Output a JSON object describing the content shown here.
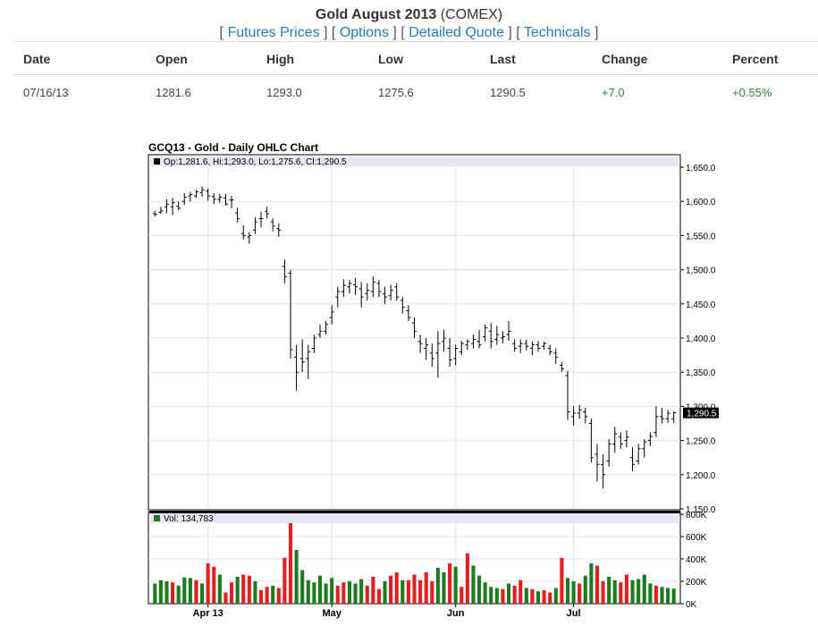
{
  "header": {
    "title_bold": "Gold August 2013",
    "title_suffix": " (COMEX)",
    "links": [
      "Futures Prices",
      "Options",
      "Detailed Quote",
      "Technicals"
    ]
  },
  "quote_table": {
    "columns": [
      "Date",
      "Open",
      "High",
      "Low",
      "Last",
      "Change",
      "Percent"
    ],
    "row": [
      "07/16/13",
      "1281.6",
      "1293.0",
      "1275.6",
      "1290.5",
      "+7.0",
      "+0.55%"
    ]
  },
  "colors": {
    "link": "#2a7ab8",
    "positive": "#2b8a2b",
    "up_volume": "#1e7a1e",
    "down_volume": "#e02020",
    "label_bg": "#e6e6f5"
  },
  "chart_data": {
    "type": "ohlc",
    "title": "GCQ13 - Gold - Daily OHLC Chart",
    "ohlc_label": "Op:1,281.6, Hi:1,293.0, Lo:1,275.6, Cl:1,290.5",
    "volume_label": "Vol: 134,783",
    "last_value_label": "1,290.5",
    "last_value": 1290.5,
    "price_ticks": [
      "1,650.0",
      "1,600.0",
      "1,550.0",
      "1,500.0",
      "1,450.0",
      "1,400.0",
      "1,350.0",
      "1,300.0",
      "1,250.0",
      "1,200.0",
      "1,150.0"
    ],
    "price_tick_values": [
      1650,
      1600,
      1550,
      1500,
      1450,
      1400,
      1350,
      1300,
      1250,
      1200,
      1150
    ],
    "price_range": [
      1150,
      1650
    ],
    "volume_ticks": [
      "800K",
      "600K",
      "400K",
      "200K",
      "0K"
    ],
    "volume_tick_values": [
      800000,
      600000,
      400000,
      200000,
      0
    ],
    "volume_range": [
      0,
      800000
    ],
    "x_labels": [
      {
        "label": "Apr 13",
        "index": 9
      },
      {
        "label": "May",
        "index": 30
      },
      {
        "label": "Jun",
        "index": 51
      },
      {
        "label": "Jul",
        "index": 71
      }
    ],
    "bars": [
      {
        "o": 1582,
        "h": 1586,
        "l": 1578,
        "c": 1581
      },
      {
        "o": 1584,
        "h": 1592,
        "l": 1582,
        "c": 1586
      },
      {
        "o": 1592,
        "h": 1603,
        "l": 1583,
        "c": 1596
      },
      {
        "o": 1592,
        "h": 1605,
        "l": 1580,
        "c": 1598
      },
      {
        "o": 1593,
        "h": 1600,
        "l": 1587,
        "c": 1590
      },
      {
        "o": 1600,
        "h": 1612,
        "l": 1595,
        "c": 1606
      },
      {
        "o": 1608,
        "h": 1614,
        "l": 1600,
        "c": 1610
      },
      {
        "o": 1608,
        "h": 1617,
        "l": 1605,
        "c": 1614
      },
      {
        "o": 1613,
        "h": 1622,
        "l": 1607,
        "c": 1617
      },
      {
        "o": 1615,
        "h": 1619,
        "l": 1601,
        "c": 1608
      },
      {
        "o": 1607,
        "h": 1612,
        "l": 1596,
        "c": 1603
      },
      {
        "o": 1603,
        "h": 1611,
        "l": 1598,
        "c": 1606
      },
      {
        "o": 1605,
        "h": 1611,
        "l": 1594,
        "c": 1596
      },
      {
        "o": 1602,
        "h": 1608,
        "l": 1590,
        "c": 1602
      },
      {
        "o": 1583,
        "h": 1591,
        "l": 1569,
        "c": 1575
      },
      {
        "o": 1553,
        "h": 1565,
        "l": 1544,
        "c": 1550
      },
      {
        "o": 1548,
        "h": 1555,
        "l": 1538,
        "c": 1550
      },
      {
        "o": 1558,
        "h": 1577,
        "l": 1552,
        "c": 1570
      },
      {
        "o": 1575,
        "h": 1585,
        "l": 1562,
        "c": 1575
      },
      {
        "o": 1585,
        "h": 1592,
        "l": 1575,
        "c": 1582
      },
      {
        "o": 1570,
        "h": 1575,
        "l": 1556,
        "c": 1564
      },
      {
        "o": 1560,
        "h": 1568,
        "l": 1548,
        "c": 1558
      },
      {
        "o": 1505,
        "h": 1515,
        "l": 1480,
        "c": 1490
      },
      {
        "o": 1495,
        "h": 1500,
        "l": 1370,
        "c": 1383
      },
      {
        "o": 1372,
        "h": 1390,
        "l": 1323,
        "c": 1350
      },
      {
        "o": 1370,
        "h": 1398,
        "l": 1350,
        "c": 1365
      },
      {
        "o": 1370,
        "h": 1390,
        "l": 1340,
        "c": 1380
      },
      {
        "o": 1385,
        "h": 1405,
        "l": 1378,
        "c": 1400
      },
      {
        "o": 1405,
        "h": 1420,
        "l": 1400,
        "c": 1410
      },
      {
        "o": 1410,
        "h": 1425,
        "l": 1405,
        "c": 1420
      },
      {
        "o": 1430,
        "h": 1448,
        "l": 1420,
        "c": 1438
      },
      {
        "o": 1460,
        "h": 1475,
        "l": 1445,
        "c": 1468
      },
      {
        "o": 1468,
        "h": 1486,
        "l": 1460,
        "c": 1477
      },
      {
        "o": 1475,
        "h": 1485,
        "l": 1465,
        "c": 1480
      },
      {
        "o": 1478,
        "h": 1488,
        "l": 1463,
        "c": 1475
      },
      {
        "o": 1472,
        "h": 1482,
        "l": 1445,
        "c": 1460
      },
      {
        "o": 1465,
        "h": 1480,
        "l": 1455,
        "c": 1470
      },
      {
        "o": 1468,
        "h": 1490,
        "l": 1460,
        "c": 1482
      },
      {
        "o": 1480,
        "h": 1485,
        "l": 1460,
        "c": 1468
      },
      {
        "o": 1465,
        "h": 1475,
        "l": 1450,
        "c": 1460
      },
      {
        "o": 1462,
        "h": 1478,
        "l": 1455,
        "c": 1470
      },
      {
        "o": 1475,
        "h": 1480,
        "l": 1455,
        "c": 1460
      },
      {
        "o": 1455,
        "h": 1460,
        "l": 1436,
        "c": 1445
      },
      {
        "o": 1440,
        "h": 1448,
        "l": 1425,
        "c": 1430
      },
      {
        "o": 1422,
        "h": 1430,
        "l": 1400,
        "c": 1410
      },
      {
        "o": 1395,
        "h": 1405,
        "l": 1378,
        "c": 1392
      },
      {
        "o": 1385,
        "h": 1400,
        "l": 1368,
        "c": 1390
      },
      {
        "o": 1378,
        "h": 1392,
        "l": 1358,
        "c": 1370
      },
      {
        "o": 1378,
        "h": 1410,
        "l": 1342,
        "c": 1392
      },
      {
        "o": 1395,
        "h": 1412,
        "l": 1380,
        "c": 1400
      },
      {
        "o": 1385,
        "h": 1400,
        "l": 1358,
        "c": 1368
      },
      {
        "o": 1370,
        "h": 1390,
        "l": 1360,
        "c": 1385
      },
      {
        "o": 1380,
        "h": 1396,
        "l": 1375,
        "c": 1392
      },
      {
        "o": 1390,
        "h": 1398,
        "l": 1383,
        "c": 1395
      },
      {
        "o": 1392,
        "h": 1405,
        "l": 1385,
        "c": 1398
      },
      {
        "o": 1395,
        "h": 1412,
        "l": 1385,
        "c": 1390
      },
      {
        "o": 1402,
        "h": 1420,
        "l": 1395,
        "c": 1415
      },
      {
        "o": 1410,
        "h": 1422,
        "l": 1385,
        "c": 1395
      },
      {
        "o": 1398,
        "h": 1418,
        "l": 1390,
        "c": 1405
      },
      {
        "o": 1400,
        "h": 1410,
        "l": 1392,
        "c": 1402
      },
      {
        "o": 1405,
        "h": 1425,
        "l": 1396,
        "c": 1410
      },
      {
        "o": 1392,
        "h": 1398,
        "l": 1380,
        "c": 1385
      },
      {
        "o": 1388,
        "h": 1398,
        "l": 1378,
        "c": 1392
      },
      {
        "o": 1392,
        "h": 1398,
        "l": 1382,
        "c": 1388
      },
      {
        "o": 1385,
        "h": 1395,
        "l": 1375,
        "c": 1390
      },
      {
        "o": 1390,
        "h": 1396,
        "l": 1380,
        "c": 1385
      },
      {
        "o": 1388,
        "h": 1395,
        "l": 1383,
        "c": 1392
      },
      {
        "o": 1385,
        "h": 1390,
        "l": 1375,
        "c": 1380
      },
      {
        "o": 1378,
        "h": 1385,
        "l": 1362,
        "c": 1372
      },
      {
        "o": 1360,
        "h": 1365,
        "l": 1350,
        "c": 1355
      },
      {
        "o": 1345,
        "h": 1352,
        "l": 1280,
        "c": 1292
      },
      {
        "o": 1285,
        "h": 1300,
        "l": 1272,
        "c": 1290
      },
      {
        "o": 1290,
        "h": 1302,
        "l": 1282,
        "c": 1295
      },
      {
        "o": 1292,
        "h": 1298,
        "l": 1275,
        "c": 1285
      },
      {
        "o": 1275,
        "h": 1282,
        "l": 1218,
        "c": 1225
      },
      {
        "o": 1230,
        "h": 1245,
        "l": 1190,
        "c": 1215
      },
      {
        "o": 1215,
        "h": 1230,
        "l": 1180,
        "c": 1200
      },
      {
        "o": 1220,
        "h": 1252,
        "l": 1212,
        "c": 1245
      },
      {
        "o": 1245,
        "h": 1270,
        "l": 1232,
        "c": 1260
      },
      {
        "o": 1255,
        "h": 1262,
        "l": 1238,
        "c": 1245
      },
      {
        "o": 1250,
        "h": 1265,
        "l": 1240,
        "c": 1255
      },
      {
        "o": 1225,
        "h": 1240,
        "l": 1205,
        "c": 1215
      },
      {
        "o": 1220,
        "h": 1245,
        "l": 1215,
        "c": 1238
      },
      {
        "o": 1238,
        "h": 1252,
        "l": 1225,
        "c": 1248
      },
      {
        "o": 1250,
        "h": 1262,
        "l": 1242,
        "c": 1256
      },
      {
        "o": 1262,
        "h": 1300,
        "l": 1255,
        "c": 1285
      },
      {
        "o": 1285,
        "h": 1298,
        "l": 1275,
        "c": 1282
      },
      {
        "o": 1282,
        "h": 1295,
        "l": 1276,
        "c": 1290
      },
      {
        "o": 1281.6,
        "h": 1293.0,
        "l": 1275.6,
        "c": 1290.5
      }
    ],
    "volume": [
      {
        "v": 180000,
        "up": true
      },
      {
        "v": 210000,
        "up": true
      },
      {
        "v": 200000,
        "up": true
      },
      {
        "v": 190000,
        "up": false
      },
      {
        "v": 160000,
        "up": true
      },
      {
        "v": 235000,
        "up": true
      },
      {
        "v": 230000,
        "up": true
      },
      {
        "v": 210000,
        "up": false
      },
      {
        "v": 180000,
        "up": true
      },
      {
        "v": 360000,
        "up": false
      },
      {
        "v": 330000,
        "up": false
      },
      {
        "v": 260000,
        "up": true
      },
      {
        "v": 100000,
        "up": false
      },
      {
        "v": 190000,
        "up": false
      },
      {
        "v": 240000,
        "up": true
      },
      {
        "v": 260000,
        "up": false
      },
      {
        "v": 250000,
        "up": false
      },
      {
        "v": 200000,
        "up": true
      },
      {
        "v": 120000,
        "up": false
      },
      {
        "v": 150000,
        "up": false
      },
      {
        "v": 160000,
        "up": true
      },
      {
        "v": 140000,
        "up": false
      },
      {
        "v": 410000,
        "up": false
      },
      {
        "v": 730000,
        "up": false
      },
      {
        "v": 480000,
        "up": true
      },
      {
        "v": 300000,
        "up": true
      },
      {
        "v": 210000,
        "up": true
      },
      {
        "v": 190000,
        "up": true
      },
      {
        "v": 250000,
        "up": true
      },
      {
        "v": 180000,
        "up": true
      },
      {
        "v": 230000,
        "up": true
      },
      {
        "v": 160000,
        "up": false
      },
      {
        "v": 190000,
        "up": false
      },
      {
        "v": 200000,
        "up": true
      },
      {
        "v": 180000,
        "up": true
      },
      {
        "v": 220000,
        "up": true
      },
      {
        "v": 160000,
        "up": false
      },
      {
        "v": 240000,
        "up": false
      },
      {
        "v": 130000,
        "up": false
      },
      {
        "v": 200000,
        "up": true
      },
      {
        "v": 250000,
        "up": false
      },
      {
        "v": 280000,
        "up": false
      },
      {
        "v": 210000,
        "up": true
      },
      {
        "v": 210000,
        "up": false
      },
      {
        "v": 260000,
        "up": false
      },
      {
        "v": 210000,
        "up": false
      },
      {
        "v": 280000,
        "up": false
      },
      {
        "v": 200000,
        "up": false
      },
      {
        "v": 320000,
        "up": true
      },
      {
        "v": 280000,
        "up": true
      },
      {
        "v": 360000,
        "up": false
      },
      {
        "v": 330000,
        "up": true
      },
      {
        "v": 150000,
        "up": false
      },
      {
        "v": 450000,
        "up": false
      },
      {
        "v": 340000,
        "up": true
      },
      {
        "v": 250000,
        "up": true
      },
      {
        "v": 190000,
        "up": true
      },
      {
        "v": 150000,
        "up": true
      },
      {
        "v": 140000,
        "up": true
      },
      {
        "v": 130000,
        "up": false
      },
      {
        "v": 180000,
        "up": true
      },
      {
        "v": 160000,
        "up": false
      },
      {
        "v": 210000,
        "up": false
      },
      {
        "v": 140000,
        "up": true
      },
      {
        "v": 130000,
        "up": false
      },
      {
        "v": 110000,
        "up": true
      },
      {
        "v": 120000,
        "up": false
      },
      {
        "v": 100000,
        "up": false
      },
      {
        "v": 140000,
        "up": true
      },
      {
        "v": 410000,
        "up": false
      },
      {
        "v": 230000,
        "up": true
      },
      {
        "v": 200000,
        "up": true
      },
      {
        "v": 180000,
        "up": false
      },
      {
        "v": 250000,
        "up": true
      },
      {
        "v": 360000,
        "up": true
      },
      {
        "v": 340000,
        "up": false
      },
      {
        "v": 200000,
        "up": false
      },
      {
        "v": 240000,
        "up": true
      },
      {
        "v": 210000,
        "up": true
      },
      {
        "v": 190000,
        "up": false
      },
      {
        "v": 260000,
        "up": false
      },
      {
        "v": 210000,
        "up": true
      },
      {
        "v": 220000,
        "up": true
      },
      {
        "v": 260000,
        "up": true
      },
      {
        "v": 180000,
        "up": true
      },
      {
        "v": 160000,
        "up": false
      },
      {
        "v": 150000,
        "up": true
      },
      {
        "v": 140000,
        "up": true
      },
      {
        "v": 135000,
        "up": true
      }
    ]
  }
}
